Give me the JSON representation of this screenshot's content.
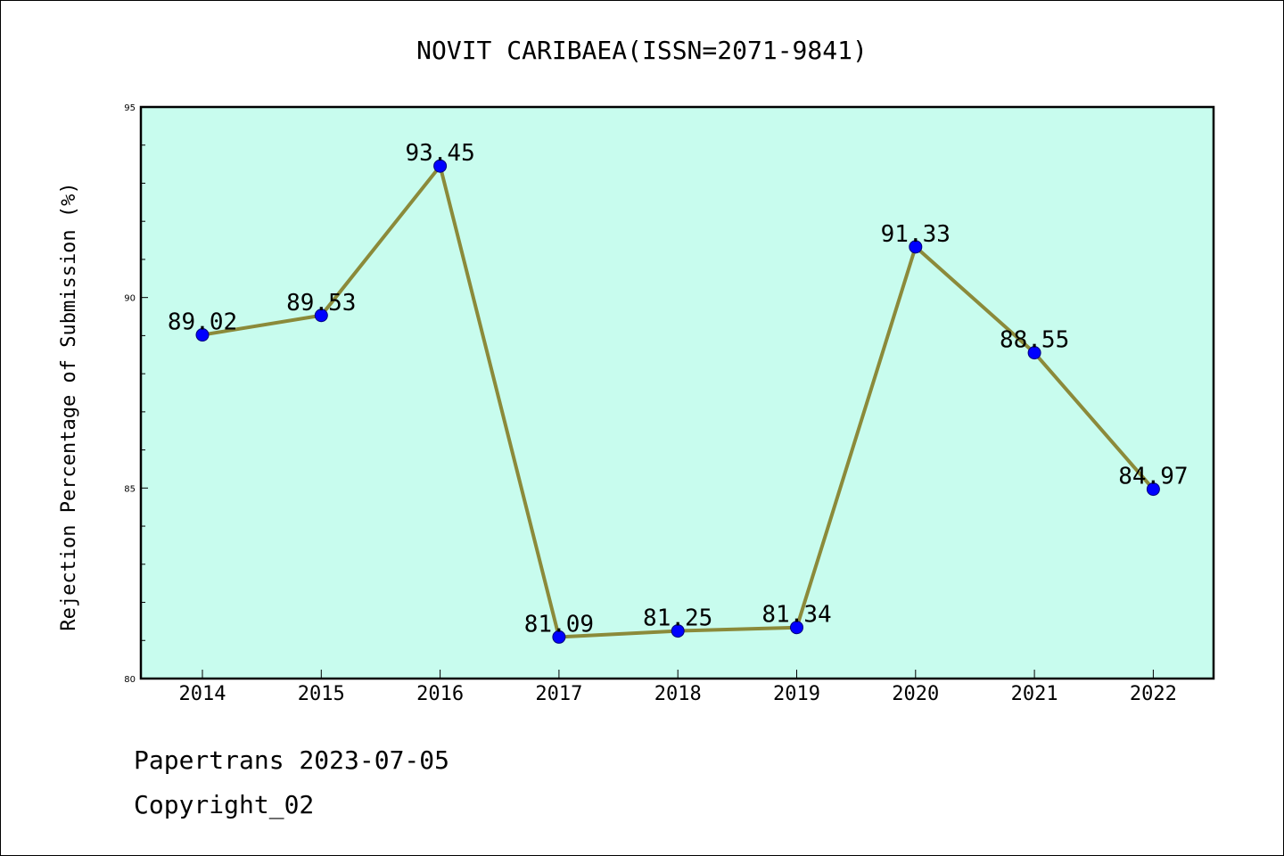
{
  "chart_data": {
    "type": "line",
    "title": "NOVIT CARIBAEA(ISSN=2071-9841)",
    "xlabel": "",
    "ylabel": "Rejection Percentage of Submission (%)",
    "categories": [
      "2014",
      "2015",
      "2016",
      "2017",
      "2018",
      "2019",
      "2020",
      "2021",
      "2022"
    ],
    "series": [
      {
        "values": [
          89.02,
          89.53,
          93.45,
          81.09,
          81.25,
          81.34,
          91.33,
          88.55,
          84.97
        ],
        "labels": [
          "89.02",
          "89.53",
          "93.45",
          "81.09",
          "81.25",
          "81.34",
          "91.33",
          "88.55",
          "84.97"
        ]
      }
    ],
    "ylim": [
      80,
      95
    ],
    "yticks": [
      "80",
      "85",
      "90",
      "95"
    ],
    "grid": false,
    "colors": {
      "plot_background": "#c8fcee",
      "line": "#8b8a3a",
      "marker": "#0000ff"
    }
  },
  "footer": {
    "line1": "Papertrans 2023-07-05",
    "line2": "Copyright_02"
  }
}
